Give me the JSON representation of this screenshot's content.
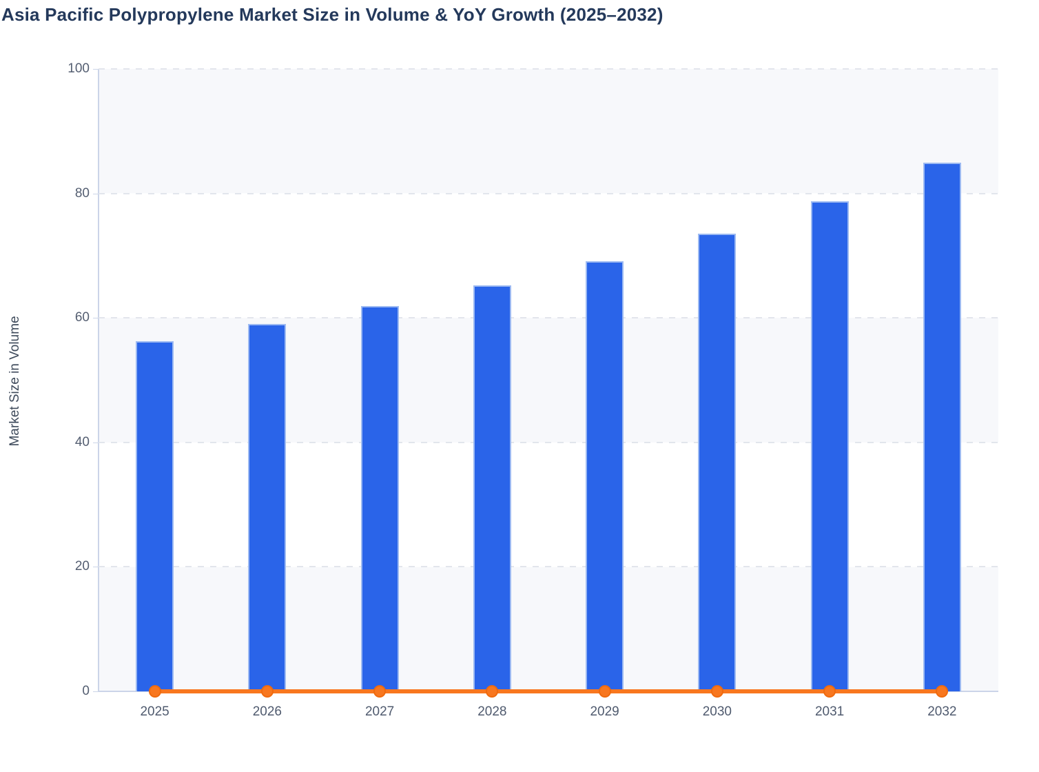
{
  "chart_data": {
    "type": "bar",
    "title": "Asia Pacific Polypropylene Market Size in Volume & YoY Growth (2025–2032)",
    "categories": [
      "2025",
      "2026",
      "2027",
      "2028",
      "2029",
      "2030",
      "2031",
      "2032"
    ],
    "series": [
      {
        "name": "Market Size in Volume",
        "type": "bar",
        "color": "#2A64E9",
        "values": [
          56.3,
          59.0,
          61.9,
          65.2,
          69.1,
          73.5,
          78.7,
          84.9
        ]
      },
      {
        "name": "YoY Growth",
        "type": "line",
        "color": "#F8771F",
        "values": [
          0,
          0,
          0,
          0,
          0,
          0,
          0,
          0
        ]
      }
    ],
    "xlabel": "",
    "ylabel": "Market Size in Volume",
    "ylim": [
      0,
      100
    ],
    "yticks": [
      0,
      20,
      40,
      60,
      80,
      100
    ],
    "grid": "horizontal dashed",
    "legend": "none",
    "plot_bands": "alternating horizontal #F7F8FB / #FFFFFF",
    "colors": {
      "bar_fill": "#2A64E9",
      "bar_border": "#9DBAF2",
      "line": "#F8771F",
      "axis": "#CBD4E8",
      "gridline": "#E2E5EC",
      "title_text": "#24395B",
      "tick_text": "#545E71"
    }
  }
}
